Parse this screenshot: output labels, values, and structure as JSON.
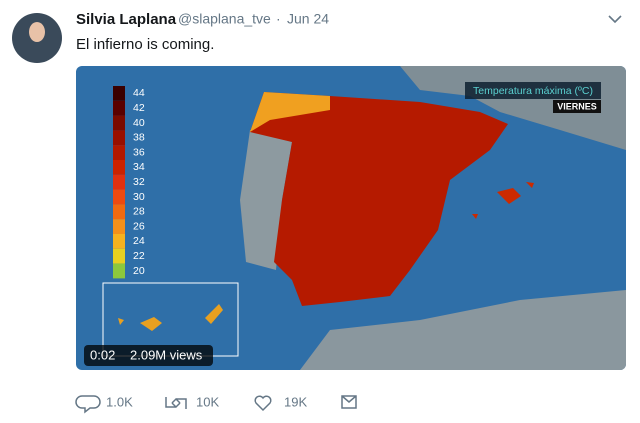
{
  "tweet": {
    "author": "Silvia Laplana",
    "handle": "@slaplana_tve",
    "separator": "·",
    "date": "Jun 24",
    "text": "El infierno is coming.",
    "video": {
      "overlay_title": "Temperatura máxima (ºC)",
      "overlay_day": "VIERNES",
      "duration": "0:02",
      "views": "2.09M views",
      "legend": [
        {
          "value": 44,
          "color": "#3a0000"
        },
        {
          "value": 42,
          "color": "#5a0000"
        },
        {
          "value": 40,
          "color": "#7a0a00"
        },
        {
          "value": 38,
          "color": "#990f00"
        },
        {
          "value": 36,
          "color": "#b31800"
        },
        {
          "value": 34,
          "color": "#cc2200"
        },
        {
          "value": 32,
          "color": "#e03010"
        },
        {
          "value": 30,
          "color": "#ee4a10"
        },
        {
          "value": 28,
          "color": "#f06a10"
        },
        {
          "value": 26,
          "color": "#f5901a"
        },
        {
          "value": 24,
          "color": "#f7b21e"
        },
        {
          "value": 22,
          "color": "#e8d020"
        },
        {
          "value": 20,
          "color": "#8cc83c"
        }
      ]
    },
    "actions": {
      "replies": "1.0K",
      "retweets": "10K",
      "likes": "19K"
    }
  }
}
